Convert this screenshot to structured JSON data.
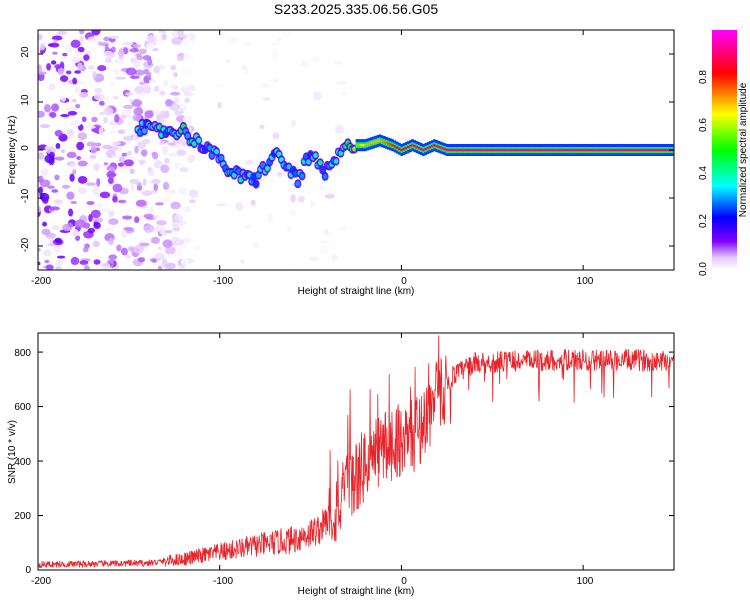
{
  "title": "S233.2025.335.06.56.G05",
  "chart_data": [
    {
      "type": "heatmap",
      "xlabel": "Height of straight line (km)",
      "ylabel": "Frequency (Hz)",
      "xlim": [
        -200,
        150
      ],
      "ylim": [
        -25,
        25
      ],
      "xticks": [
        -200,
        -100,
        0,
        100
      ],
      "yticks": [
        -20,
        -10,
        0,
        10,
        20
      ],
      "colorbar": {
        "label": "Normalized spectral amplitude",
        "range": [
          0,
          1
        ],
        "ticks": [
          "0.0",
          "0.2",
          "0.4",
          "0.6",
          "0.8"
        ],
        "tick_values": [
          0.0,
          0.2,
          0.4,
          0.6,
          0.8
        ],
        "colors": [
          "#ffffff",
          "#e6ccff",
          "#8000ff",
          "#0000ff",
          "#00ffff",
          "#00ff00",
          "#ffff00",
          "#ff0000",
          "#ff00ff"
        ]
      },
      "ridge": [
        {
          "x": -145,
          "y": 5,
          "amp": 0.3
        },
        {
          "x": -138,
          "y": 4,
          "amp": 0.3
        },
        {
          "x": -132,
          "y": 4,
          "amp": 0.35
        },
        {
          "x": -126,
          "y": 4,
          "amp": 0.3
        },
        {
          "x": -120,
          "y": 4,
          "amp": 0.35
        },
        {
          "x": -114,
          "y": 2,
          "amp": 0.3
        },
        {
          "x": -108,
          "y": 1,
          "amp": 0.3
        },
        {
          "x": -103,
          "y": -1,
          "amp": 0.3
        },
        {
          "x": -98,
          "y": -3,
          "amp": 0.3
        },
        {
          "x": -92,
          "y": -5,
          "amp": 0.35
        },
        {
          "x": -86,
          "y": -6,
          "amp": 0.3
        },
        {
          "x": -80,
          "y": -6,
          "amp": 0.3
        },
        {
          "x": -70,
          "y": -1,
          "amp": 0.3
        },
        {
          "x": -66,
          "y": -2,
          "amp": 0.3
        },
        {
          "x": -62,
          "y": -4,
          "amp": 0.3
        },
        {
          "x": -57,
          "y": -6,
          "amp": 0.3
        },
        {
          "x": -50,
          "y": -1,
          "amp": 0.3
        },
        {
          "x": -46,
          "y": -3,
          "amp": 0.35
        },
        {
          "x": -42,
          "y": -5,
          "amp": 0.3
        },
        {
          "x": -36,
          "y": -2,
          "amp": 0.3
        },
        {
          "x": -32,
          "y": 0,
          "amp": 0.35
        },
        {
          "x": -27,
          "y": 1,
          "amp": 0.45
        },
        {
          "x": -20,
          "y": 1,
          "amp": 0.7
        },
        {
          "x": -12,
          "y": 2,
          "amp": 0.7
        },
        {
          "x": -5,
          "y": 1,
          "amp": 0.8
        },
        {
          "x": 0,
          "y": 0,
          "amp": 0.85
        },
        {
          "x": 6,
          "y": 1,
          "amp": 0.9
        },
        {
          "x": 12,
          "y": 0,
          "amp": 0.9
        },
        {
          "x": 18,
          "y": 1,
          "amp": 0.9
        },
        {
          "x": 25,
          "y": 0,
          "amp": 0.9
        },
        {
          "x": 150,
          "y": 0,
          "amp": 0.9
        }
      ]
    },
    {
      "type": "line",
      "xlabel": "Height of straight line (km)",
      "ylabel": "SNR (10 * v/v)",
      "xlim": [
        -200,
        150
      ],
      "ylim": [
        0,
        870
      ],
      "xticks": [
        -200,
        -100,
        0,
        100
      ],
      "yticks": [
        0,
        200,
        400,
        600,
        800
      ],
      "color": "#e8232a",
      "trend": [
        {
          "x": -200,
          "y": 20
        },
        {
          "x": -140,
          "y": 25
        },
        {
          "x": -120,
          "y": 40
        },
        {
          "x": -100,
          "y": 65
        },
        {
          "x": -80,
          "y": 90
        },
        {
          "x": -60,
          "y": 110
        },
        {
          "x": -45,
          "y": 150
        },
        {
          "x": -35,
          "y": 230
        },
        {
          "x": -25,
          "y": 340
        },
        {
          "x": -18,
          "y": 400
        },
        {
          "x": -10,
          "y": 450
        },
        {
          "x": -2,
          "y": 480
        },
        {
          "x": 5,
          "y": 480
        },
        {
          "x": 12,
          "y": 540
        },
        {
          "x": 20,
          "y": 640
        },
        {
          "x": 28,
          "y": 710
        },
        {
          "x": 40,
          "y": 760
        },
        {
          "x": 80,
          "y": 770
        },
        {
          "x": 150,
          "y": 770
        }
      ]
    }
  ]
}
